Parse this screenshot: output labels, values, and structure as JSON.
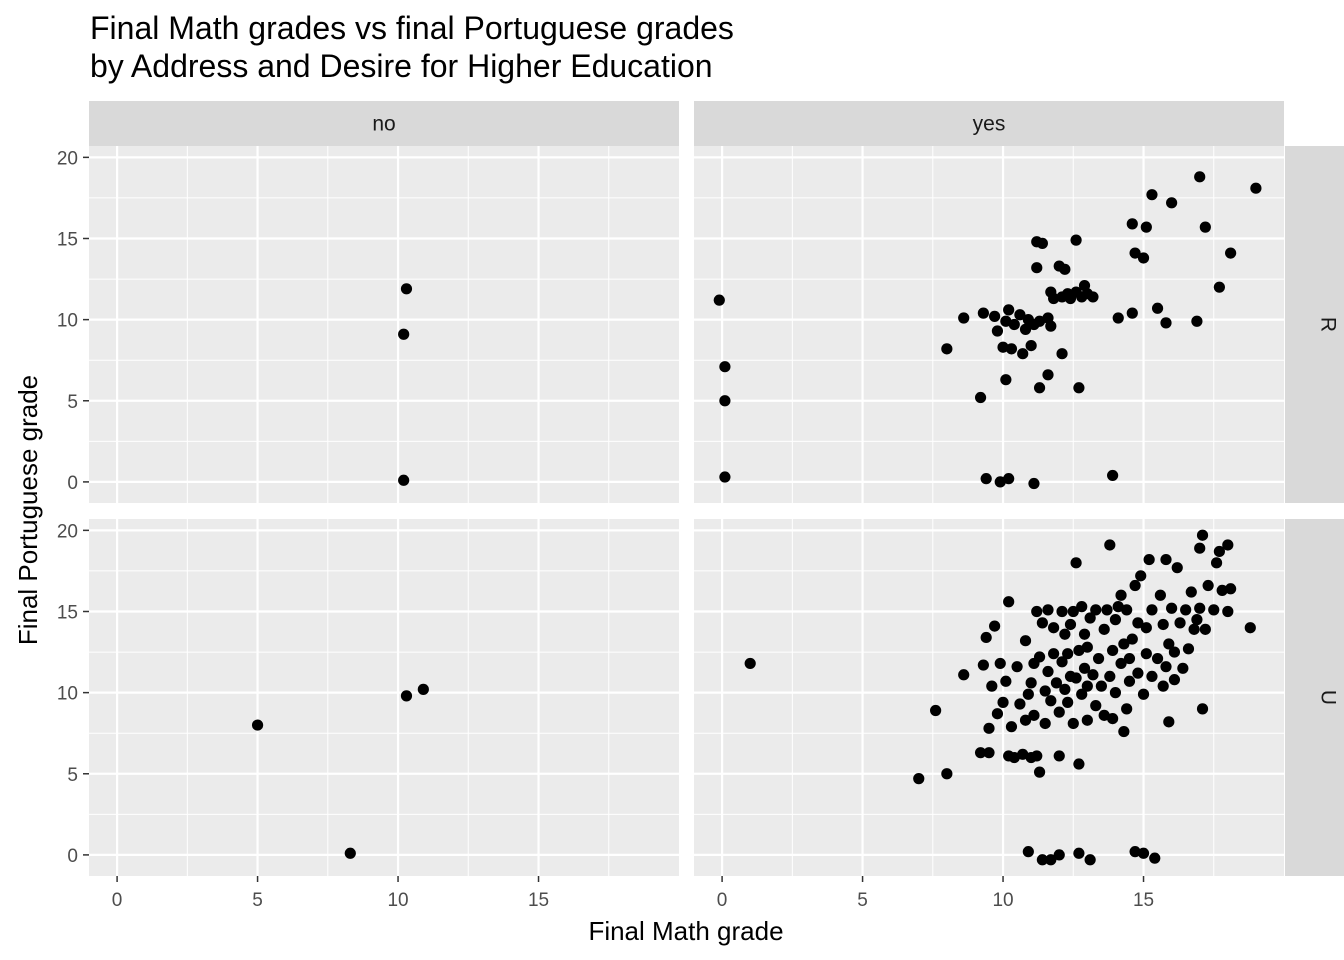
{
  "chart_data": {
    "type": "scatter",
    "title": "Final Math grades vs final Portuguese grades",
    "subtitle": "by Address and Desire for Higher Education",
    "xlabel": "Final Math grade",
    "ylabel": "Final Portuguese grade",
    "xlim": [
      -1,
      20
    ],
    "ylim": [
      -1.3,
      20.7
    ],
    "xticks": [
      0,
      5,
      10,
      15
    ],
    "yticks": [
      0,
      5,
      10,
      15,
      20
    ],
    "grid": true,
    "facet_columns": [
      "no",
      "yes"
    ],
    "facet_rows": [
      "R",
      "U"
    ],
    "colors": {
      "panel": "#ebebeb",
      "strip": "#d9d9d9",
      "point": "#000000",
      "grid": "#ffffff"
    },
    "panels": [
      {
        "column": "no",
        "row": "R",
        "points": [
          [
            10.3,
            11.9
          ],
          [
            10.2,
            9.1
          ],
          [
            10.2,
            0.1
          ]
        ]
      },
      {
        "column": "yes",
        "row": "R",
        "points": [
          [
            -0.1,
            11.2
          ],
          [
            0.1,
            7.1
          ],
          [
            0.1,
            5.0
          ],
          [
            0.1,
            0.3
          ],
          [
            8.0,
            8.2
          ],
          [
            8.6,
            10.1
          ],
          [
            9.2,
            5.2
          ],
          [
            9.3,
            10.4
          ],
          [
            9.4,
            0.2
          ],
          [
            9.7,
            10.2
          ],
          [
            9.8,
            9.3
          ],
          [
            9.9,
            0.0
          ],
          [
            10.0,
            8.3
          ],
          [
            10.1,
            9.9
          ],
          [
            10.1,
            6.3
          ],
          [
            10.2,
            10.6
          ],
          [
            10.2,
            0.2
          ],
          [
            10.3,
            8.2
          ],
          [
            10.4,
            9.7
          ],
          [
            10.6,
            10.3
          ],
          [
            10.7,
            7.9
          ],
          [
            10.8,
            9.4
          ],
          [
            10.9,
            10.0
          ],
          [
            11.0,
            8.4
          ],
          [
            11.1,
            9.7
          ],
          [
            11.1,
            -0.1
          ],
          [
            11.2,
            13.2
          ],
          [
            11.2,
            14.8
          ],
          [
            11.3,
            5.8
          ],
          [
            11.3,
            9.9
          ],
          [
            11.4,
            14.7
          ],
          [
            11.6,
            10.1
          ],
          [
            11.6,
            6.6
          ],
          [
            11.7,
            9.6
          ],
          [
            11.7,
            11.7
          ],
          [
            11.8,
            11.3
          ],
          [
            12.0,
            13.3
          ],
          [
            12.1,
            7.9
          ],
          [
            12.1,
            11.4
          ],
          [
            12.2,
            13.1
          ],
          [
            12.3,
            11.6
          ],
          [
            12.4,
            11.3
          ],
          [
            12.6,
            11.7
          ],
          [
            12.6,
            14.9
          ],
          [
            12.7,
            5.8
          ],
          [
            12.8,
            11.4
          ],
          [
            12.9,
            12.1
          ],
          [
            13.0,
            11.6
          ],
          [
            13.2,
            11.4
          ],
          [
            13.9,
            0.4
          ],
          [
            14.1,
            10.1
          ],
          [
            14.6,
            10.4
          ],
          [
            14.6,
            15.9
          ],
          [
            14.7,
            14.1
          ],
          [
            15.0,
            13.8
          ],
          [
            15.1,
            15.7
          ],
          [
            15.3,
            17.7
          ],
          [
            15.5,
            10.7
          ],
          [
            15.8,
            9.8
          ],
          [
            16.0,
            17.2
          ],
          [
            16.9,
            9.9
          ],
          [
            17.0,
            18.8
          ],
          [
            17.2,
            15.7
          ],
          [
            17.7,
            12.0
          ],
          [
            18.1,
            14.1
          ],
          [
            19.0,
            18.1
          ]
        ]
      },
      {
        "column": "no",
        "row": "U",
        "points": [
          [
            5.0,
            8.0
          ],
          [
            8.3,
            0.1
          ],
          [
            10.3,
            9.8
          ],
          [
            10.9,
            10.2
          ]
        ]
      },
      {
        "column": "yes",
        "row": "U",
        "points": [
          [
            1.0,
            11.8
          ],
          [
            7.0,
            4.7
          ],
          [
            7.6,
            8.9
          ],
          [
            8.0,
            5.0
          ],
          [
            8.6,
            11.1
          ],
          [
            9.2,
            6.3
          ],
          [
            9.3,
            11.7
          ],
          [
            9.4,
            13.4
          ],
          [
            9.5,
            6.3
          ],
          [
            9.5,
            7.8
          ],
          [
            9.6,
            10.4
          ],
          [
            9.7,
            14.1
          ],
          [
            9.8,
            8.7
          ],
          [
            9.9,
            11.8
          ],
          [
            10.0,
            9.4
          ],
          [
            10.1,
            10.7
          ],
          [
            10.2,
            6.1
          ],
          [
            10.2,
            15.6
          ],
          [
            10.3,
            7.9
          ],
          [
            10.4,
            6.0
          ],
          [
            10.5,
            11.6
          ],
          [
            10.6,
            9.3
          ],
          [
            10.7,
            6.2
          ],
          [
            10.8,
            8.3
          ],
          [
            10.8,
            13.2
          ],
          [
            10.9,
            9.9
          ],
          [
            10.9,
            0.2
          ],
          [
            11.0,
            6.0
          ],
          [
            11.0,
            10.6
          ],
          [
            11.1,
            11.8
          ],
          [
            11.1,
            8.6
          ],
          [
            11.2,
            15.0
          ],
          [
            11.2,
            6.1
          ],
          [
            11.3,
            5.1
          ],
          [
            11.3,
            12.2
          ],
          [
            11.4,
            14.3
          ],
          [
            11.4,
            -0.3
          ],
          [
            11.5,
            10.1
          ],
          [
            11.5,
            8.1
          ],
          [
            11.6,
            15.1
          ],
          [
            11.6,
            11.3
          ],
          [
            11.7,
            9.5
          ],
          [
            11.7,
            -0.3
          ],
          [
            11.8,
            12.4
          ],
          [
            11.8,
            14.0
          ],
          [
            11.9,
            10.6
          ],
          [
            12.0,
            8.8
          ],
          [
            12.0,
            6.1
          ],
          [
            12.0,
            0.0
          ],
          [
            12.1,
            11.9
          ],
          [
            12.1,
            15.0
          ],
          [
            12.2,
            10.2
          ],
          [
            12.2,
            13.6
          ],
          [
            12.3,
            9.4
          ],
          [
            12.3,
            12.4
          ],
          [
            12.4,
            11.0
          ],
          [
            12.4,
            14.2
          ],
          [
            12.5,
            8.1
          ],
          [
            12.5,
            15.0
          ],
          [
            12.6,
            10.9
          ],
          [
            12.6,
            18.0
          ],
          [
            12.7,
            12.6
          ],
          [
            12.7,
            5.6
          ],
          [
            12.7,
            0.1
          ],
          [
            12.8,
            9.9
          ],
          [
            12.8,
            15.3
          ],
          [
            12.9,
            11.5
          ],
          [
            12.9,
            13.6
          ],
          [
            13.0,
            8.3
          ],
          [
            13.0,
            10.4
          ],
          [
            13.0,
            12.8
          ],
          [
            13.1,
            -0.3
          ],
          [
            13.1,
            14.6
          ],
          [
            13.2,
            11.1
          ],
          [
            13.3,
            9.2
          ],
          [
            13.3,
            15.1
          ],
          [
            13.4,
            12.1
          ],
          [
            13.5,
            10.4
          ],
          [
            13.6,
            8.6
          ],
          [
            13.6,
            13.9
          ],
          [
            13.7,
            15.1
          ],
          [
            13.8,
            11.0
          ],
          [
            13.8,
            19.1
          ],
          [
            13.9,
            8.4
          ],
          [
            13.9,
            12.6
          ],
          [
            14.0,
            10.0
          ],
          [
            14.0,
            14.5
          ],
          [
            14.1,
            15.3
          ],
          [
            14.2,
            11.8
          ],
          [
            14.2,
            16.0
          ],
          [
            14.3,
            7.6
          ],
          [
            14.3,
            13.0
          ],
          [
            14.4,
            9.0
          ],
          [
            14.4,
            15.1
          ],
          [
            14.5,
            10.7
          ],
          [
            14.5,
            12.1
          ],
          [
            14.6,
            13.3
          ],
          [
            14.7,
            16.6
          ],
          [
            14.7,
            0.2
          ],
          [
            14.8,
            11.2
          ],
          [
            14.8,
            14.3
          ],
          [
            14.9,
            17.2
          ],
          [
            15.0,
            0.1
          ],
          [
            15.0,
            9.9
          ],
          [
            15.1,
            12.4
          ],
          [
            15.1,
            14.0
          ],
          [
            15.2,
            18.2
          ],
          [
            15.3,
            11.0
          ],
          [
            15.3,
            15.1
          ],
          [
            15.4,
            -0.2
          ],
          [
            15.5,
            12.1
          ],
          [
            15.6,
            16.0
          ],
          [
            15.7,
            10.4
          ],
          [
            15.7,
            14.2
          ],
          [
            15.8,
            11.6
          ],
          [
            15.8,
            18.2
          ],
          [
            15.9,
            8.2
          ],
          [
            15.9,
            13.0
          ],
          [
            16.0,
            15.2
          ],
          [
            16.1,
            10.8
          ],
          [
            16.1,
            12.5
          ],
          [
            16.2,
            17.7
          ],
          [
            16.3,
            14.3
          ],
          [
            16.4,
            11.5
          ],
          [
            16.5,
            15.1
          ],
          [
            16.6,
            12.7
          ],
          [
            16.7,
            16.2
          ],
          [
            16.8,
            13.9
          ],
          [
            16.9,
            14.5
          ],
          [
            17.0,
            18.9
          ],
          [
            17.0,
            15.2
          ],
          [
            17.1,
            9.0
          ],
          [
            17.1,
            19.7
          ],
          [
            17.2,
            13.9
          ],
          [
            17.3,
            16.6
          ],
          [
            17.5,
            15.1
          ],
          [
            17.6,
            18.0
          ],
          [
            17.7,
            18.7
          ],
          [
            17.8,
            16.3
          ],
          [
            18.0,
            15.0
          ],
          [
            18.0,
            19.1
          ],
          [
            18.1,
            16.4
          ],
          [
            18.8,
            14.0
          ]
        ]
      }
    ]
  }
}
